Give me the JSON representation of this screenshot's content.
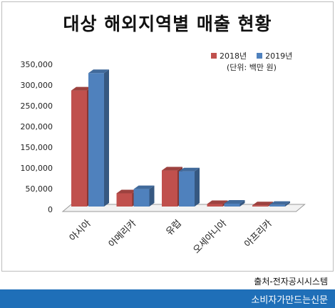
{
  "chart_data": {
    "type": "bar",
    "title": "대상 해외지역별 매출 현황",
    "unit_note": "(단위: 백만 원)",
    "categories": [
      "아시아",
      "아메리카",
      "유럽",
      "오세아니아",
      "아프리카"
    ],
    "series": [
      {
        "name": "2018년",
        "values": [
          280000,
          32000,
          87000,
          6000,
          3000
        ],
        "color": "#c0504d"
      },
      {
        "name": "2019년",
        "values": [
          322000,
          42000,
          85000,
          7000,
          4000
        ],
        "color": "#4f81bd"
      }
    ],
    "y_ticks": [
      "0",
      "50,000",
      "100,000",
      "150,000",
      "200,000",
      "250,000",
      "300,000",
      "350,000"
    ],
    "ylim": [
      0,
      350000
    ],
    "grid": false,
    "legend_position": "top-right"
  },
  "source_text": "출처-전자공시시스템",
  "footer_text": "소비자가만드는신문"
}
